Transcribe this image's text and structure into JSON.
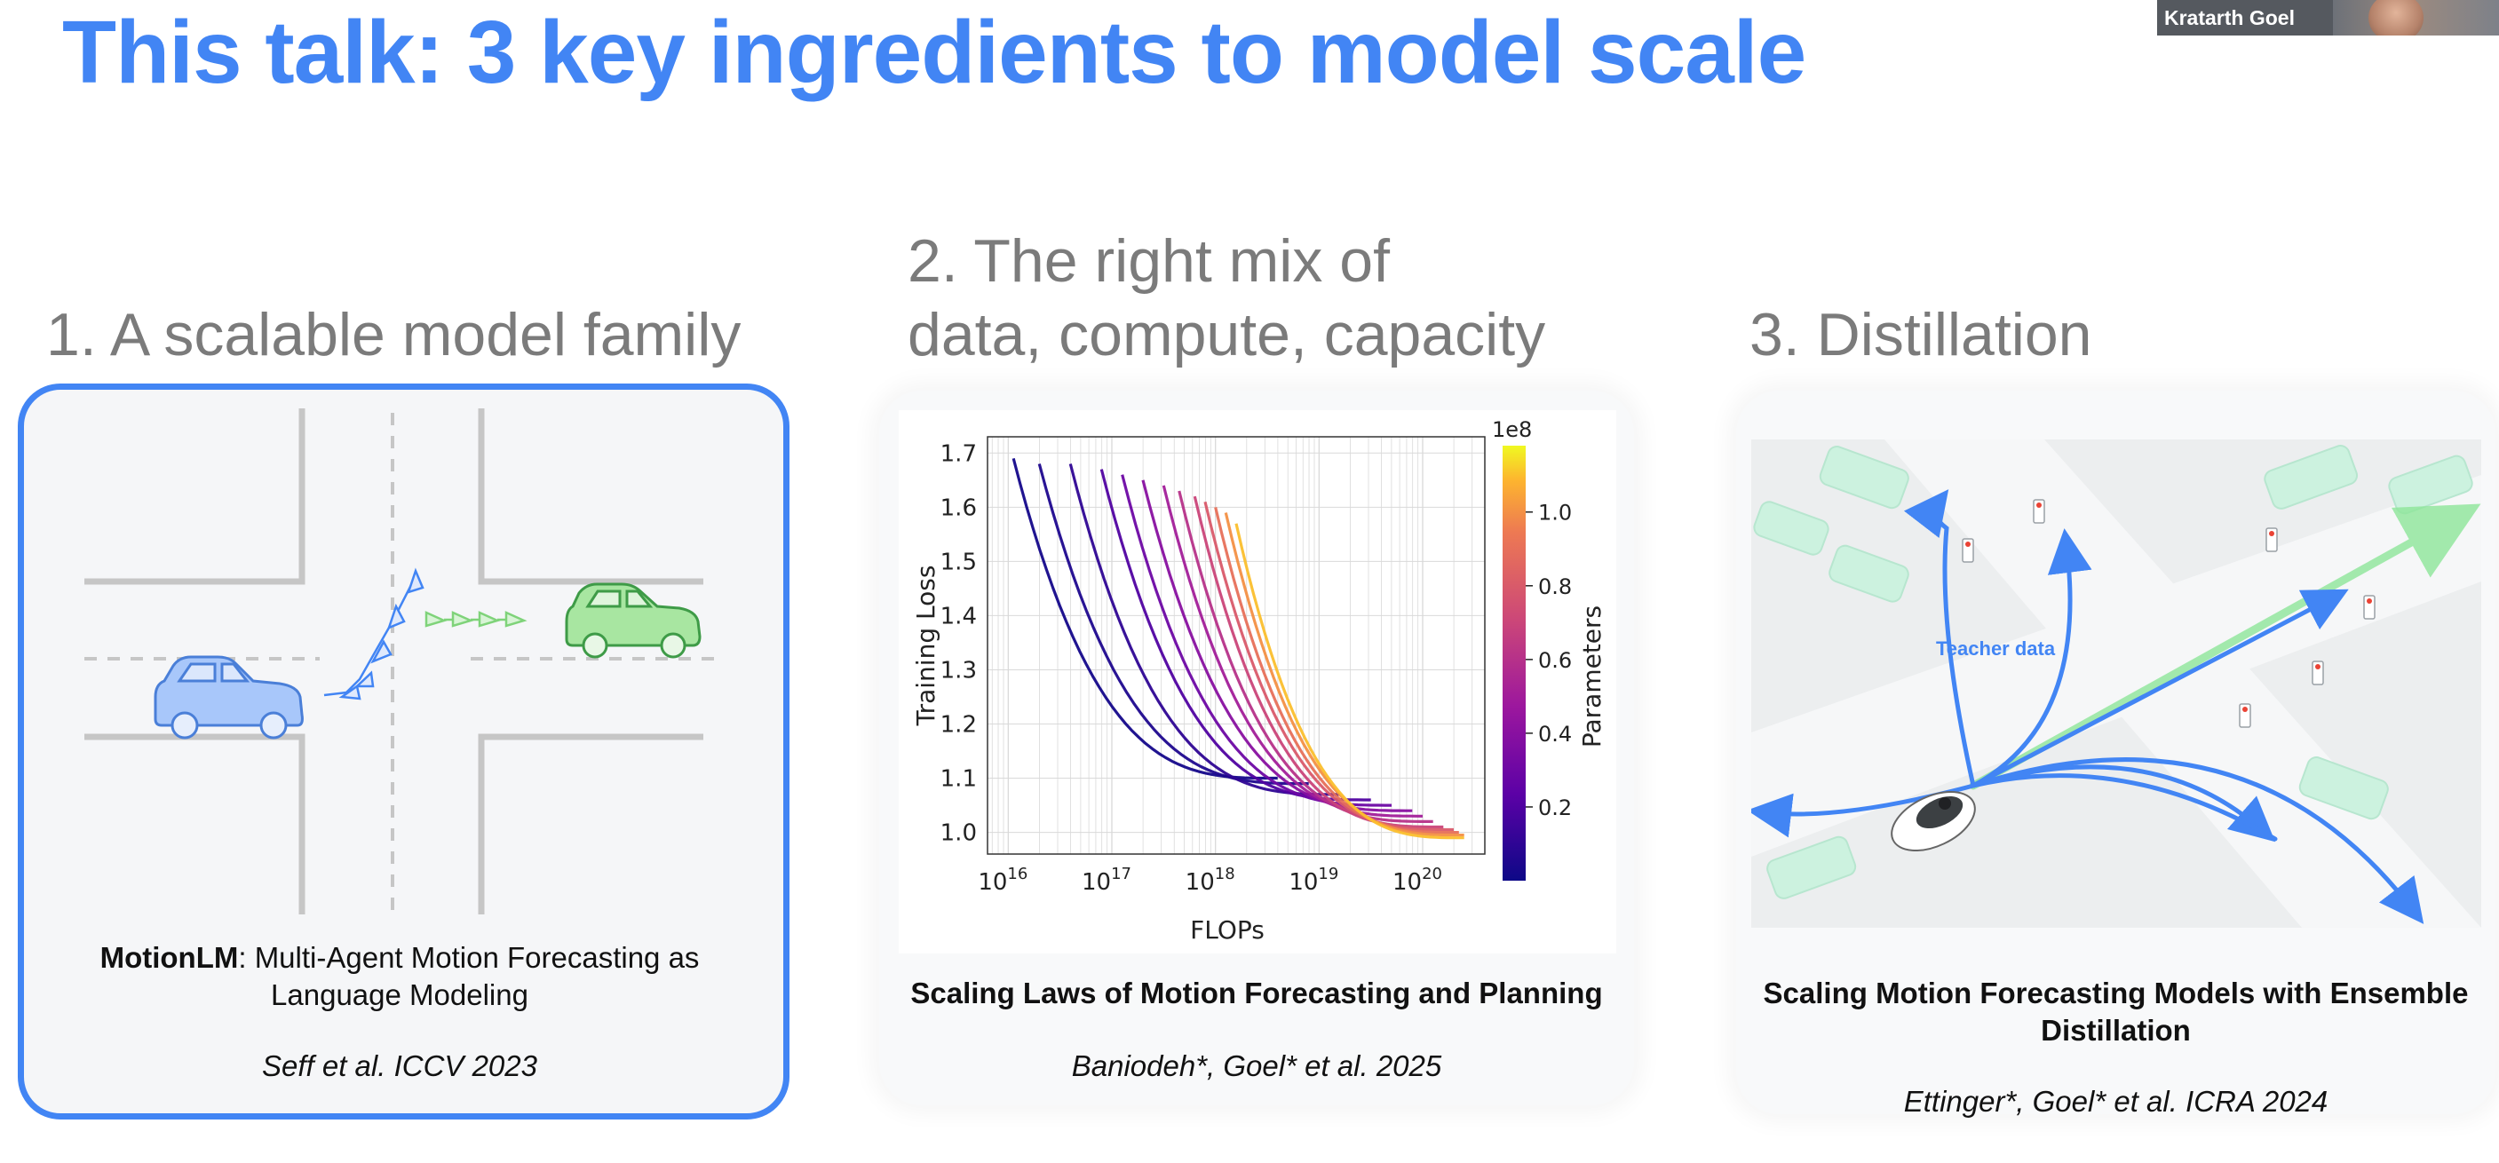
{
  "slide": {
    "title": "This talk: 3 key ingredients to model scale"
  },
  "video_call": {
    "speaker_name": "Kratarth Goel"
  },
  "sections": [
    {
      "heading": "1. A scalable model family",
      "paper_bold": "MotionLM",
      "paper_rest_line1": ": Multi-Agent Motion Forecasting as",
      "paper_rest_line2": "Language Modeling",
      "citation": "Seff et al. ICCV 2023"
    },
    {
      "heading_line1": "2. The right mix of",
      "heading_line2": "data, compute, capacity",
      "paper": "Scaling Laws of Motion Forecasting and Planning",
      "citation": "Baniodeh*, Goel* et al. 2025"
    },
    {
      "heading": "3. Distillation",
      "paper_line1": "Scaling Motion Forecasting Models with Ensemble",
      "paper_line2": "Distillation",
      "citation": "Ettinger*, Goel* et al. ICRA 2024",
      "figure_label": "Teacher data"
    }
  ],
  "chart_data": {
    "type": "line",
    "xlabel": "FLOPs",
    "ylabel": "Training Loss",
    "x_scale": "log",
    "x_ticks": [
      "10^16",
      "10^17",
      "10^18",
      "10^19",
      "10^20"
    ],
    "x_tick_values": [
      16,
      17,
      18,
      19,
      20
    ],
    "y_ticks": [
      "1.0",
      "1.1",
      "1.2",
      "1.3",
      "1.4",
      "1.5",
      "1.6",
      "1.7"
    ],
    "xlim_log10": [
      15.8,
      20.6
    ],
    "ylim": [
      0.96,
      1.73
    ],
    "grid": true,
    "colorbar": {
      "label": "Parameters",
      "multiplier": "1e8",
      "ticks": [
        "0.2",
        "0.4",
        "0.6",
        "0.8",
        "1.0"
      ],
      "tick_values": [
        0.2,
        0.4,
        0.6,
        0.8,
        1.0
      ],
      "range": [
        0.0,
        1.18
      ],
      "colormap": "plasma"
    },
    "series": [
      {
        "params": 0.02,
        "start_log10_flops": 16.05,
        "start_loss": 1.69,
        "end_log10_flops": 18.6,
        "end_loss": 1.1
      },
      {
        "params": 0.05,
        "start_log10_flops": 16.3,
        "start_loss": 1.68,
        "end_log10_flops": 18.9,
        "end_loss": 1.09
      },
      {
        "params": 0.1,
        "start_log10_flops": 16.6,
        "start_loss": 1.68,
        "end_log10_flops": 19.2,
        "end_loss": 1.07
      },
      {
        "params": 0.2,
        "start_log10_flops": 16.9,
        "start_loss": 1.67,
        "end_log10_flops": 19.5,
        "end_loss": 1.06
      },
      {
        "params": 0.3,
        "start_log10_flops": 17.1,
        "start_loss": 1.66,
        "end_log10_flops": 19.7,
        "end_loss": 1.05
      },
      {
        "params": 0.4,
        "start_log10_flops": 17.3,
        "start_loss": 1.65,
        "end_log10_flops": 19.9,
        "end_loss": 1.04
      },
      {
        "params": 0.5,
        "start_log10_flops": 17.5,
        "start_loss": 1.64,
        "end_log10_flops": 20.0,
        "end_loss": 1.03
      },
      {
        "params": 0.6,
        "start_log10_flops": 17.65,
        "start_loss": 1.63,
        "end_log10_flops": 20.1,
        "end_loss": 1.02
      },
      {
        "params": 0.7,
        "start_log10_flops": 17.8,
        "start_loss": 1.62,
        "end_log10_flops": 20.2,
        "end_loss": 1.01
      },
      {
        "params": 0.8,
        "start_log10_flops": 17.9,
        "start_loss": 1.61,
        "end_log10_flops": 20.3,
        "end_loss": 1.005
      },
      {
        "params": 0.9,
        "start_log10_flops": 18.0,
        "start_loss": 1.6,
        "end_log10_flops": 20.35,
        "end_loss": 1.0
      },
      {
        "params": 1.0,
        "start_log10_flops": 18.1,
        "start_loss": 1.59,
        "end_log10_flops": 20.4,
        "end_loss": 0.995
      },
      {
        "params": 1.1,
        "start_log10_flops": 18.2,
        "start_loss": 1.57,
        "end_log10_flops": 20.4,
        "end_loss": 0.99
      }
    ]
  },
  "colors": {
    "title_blue": "#4285f4",
    "heading_gray": "#7b7b7b",
    "ego_car_blue": "#a8c7fa",
    "other_car_green": "#a8e6a1",
    "trajectory_blue": "#4285f4"
  }
}
